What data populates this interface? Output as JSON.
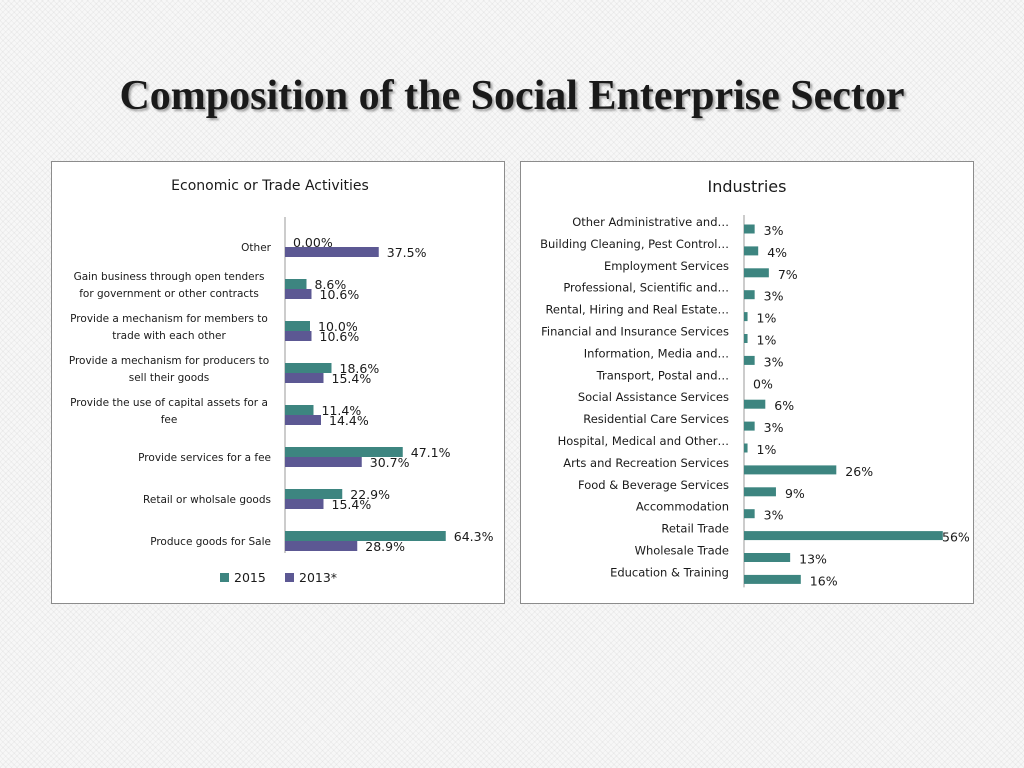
{
  "slide": {
    "title": "Composition of the Social Enterprise Sector"
  },
  "colors": {
    "teal": "#3d8580",
    "purple": "#5c5893",
    "axis": "#9a9a9a",
    "text": "#1a1a1a"
  },
  "chart_data": [
    {
      "type": "bar",
      "orientation": "horizontal",
      "title": "Economic or Trade Activities",
      "categories": [
        [
          "Other"
        ],
        [
          "Gain business through open tenders",
          "for government or other contracts"
        ],
        [
          "Provide a mechanism for members to",
          "trade with each other"
        ],
        [
          "Provide a mechanism for producers to",
          "sell their goods"
        ],
        [
          "Provide the use of capital assets for a",
          "fee"
        ],
        [
          "Provide services for a fee"
        ],
        [
          "Retail or wholsale goods"
        ],
        [
          "Produce goods for Sale"
        ]
      ],
      "series": [
        {
          "name": "2015",
          "color": "#3d8580",
          "values": [
            0.0,
            8.6,
            10.0,
            18.6,
            11.4,
            47.1,
            22.9,
            64.3
          ],
          "labels": [
            "0.00%",
            "8.6%",
            "10.0%",
            "18.6%",
            "11.4%",
            "47.1%",
            "22.9%",
            "64.3%"
          ]
        },
        {
          "name": "2013*",
          "color": "#5c5893",
          "values": [
            37.5,
            10.6,
            10.6,
            15.4,
            14.4,
            30.7,
            15.4,
            28.9
          ],
          "labels": [
            "37.5%",
            "10.6%",
            "10.6%",
            "15.4%",
            "14.4%",
            "30.7%",
            "15.4%",
            "28.9%"
          ]
        }
      ],
      "xlim": [
        0,
        100
      ],
      "legend": "bottom",
      "grid": false
    },
    {
      "type": "bar",
      "orientation": "horizontal",
      "title": "Industries",
      "categories": [
        "Other Administrative and…",
        "Building Cleaning, Pest Control…",
        "Employment Services",
        "Professional, Scientific and…",
        "Rental, Hiring and Real Estate…",
        "Financial and Insurance Services",
        "Information, Media and…",
        "Transport, Postal and…",
        "Social Assistance Services",
        "Residential Care Services",
        "Hospital, Medical and Other…",
        "Arts and Recreation Services",
        "Food & Beverage Services",
        "Accommodation",
        "Retail Trade",
        "Wholesale Trade",
        "Education & Training"
      ],
      "values": [
        3,
        4,
        7,
        3,
        1,
        1,
        3,
        0,
        6,
        3,
        1,
        26,
        9,
        3,
        56,
        13,
        16
      ],
      "labels": [
        "3%",
        "4%",
        "7%",
        "3%",
        "1%",
        "1%",
        "3%",
        "0%",
        "6%",
        "3%",
        "1%",
        "26%",
        "9%",
        "3%",
        "56%",
        "13%",
        "16%"
      ],
      "color": "#3d8580",
      "xlim": [
        0,
        56
      ],
      "legend": "none",
      "grid": false
    }
  ]
}
